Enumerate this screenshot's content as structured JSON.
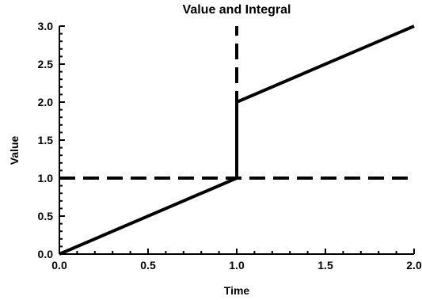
{
  "chart_data": {
    "type": "line",
    "title": "Value and Integral",
    "xlabel": "Time",
    "ylabel": "Value",
    "xlim": [
      0,
      2
    ],
    "ylim": [
      0,
      3
    ],
    "x_ticks": [
      0,
      0.5,
      1,
      1.5,
      2
    ],
    "x_tick_labels": [
      "0.0",
      "0.5",
      "1.0",
      "1.5",
      "2.0"
    ],
    "y_ticks": [
      0,
      0.5,
      1,
      1.5,
      2,
      2.5,
      3
    ],
    "y_tick_labels": [
      "0.0",
      "0.5",
      "1.0",
      "1.5",
      "2.0",
      "2.5",
      "3.0"
    ],
    "grid": false,
    "series": [
      {
        "style": "solid",
        "color": "#000000",
        "x": [
          0,
          1,
          1,
          2
        ],
        "y": [
          0,
          1,
          2,
          3
        ]
      },
      {
        "style": "dashed",
        "color": "#000000",
        "x": [
          0,
          2
        ],
        "y": [
          1,
          1
        ]
      },
      {
        "style": "dashed",
        "color": "#000000",
        "x": [
          1,
          1
        ],
        "y": [
          1,
          3
        ]
      }
    ]
  }
}
